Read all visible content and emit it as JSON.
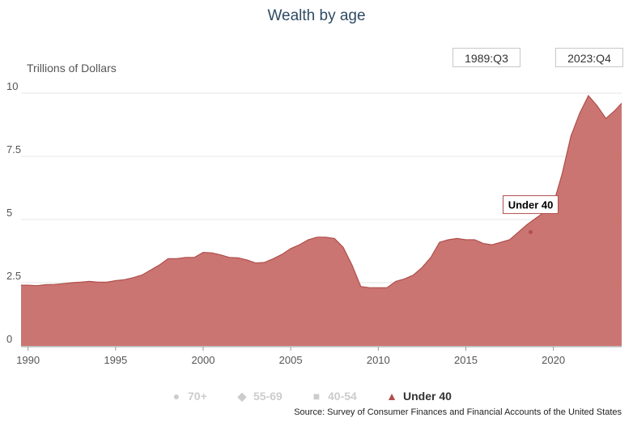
{
  "title": "Wealth by age",
  "range_start": "1989:Q3",
  "range_end": "2023:Q4",
  "source": "Source: Survey of Consumer Finances and Financial Accounts of the United States",
  "colors": {
    "series": "#c4625f",
    "series_line": "#b04f4c",
    "legend_inactive": "#cccccc",
    "legend_active": "#333333"
  },
  "legend": [
    {
      "label": "70+",
      "icon": "circle-icon",
      "active": false
    },
    {
      "label": "55-69",
      "icon": "diamond-icon",
      "active": false
    },
    {
      "label": "40-54",
      "icon": "square-icon",
      "active": false
    },
    {
      "label": "Under 40",
      "icon": "triangle-icon",
      "active": true
    }
  ],
  "chart_data": {
    "type": "area",
    "ylabel": "Trillions of Dollars",
    "xlabel": "",
    "xlim": [
      1989.6,
      2023.9
    ],
    "ylim": [
      0,
      10
    ],
    "x_ticks": [
      "1990",
      "1995",
      "2000",
      "2005",
      "2010",
      "2015",
      "2020"
    ],
    "y_ticks": [
      "0",
      "2.5",
      "5",
      "7.5",
      "10"
    ],
    "grid": true,
    "legend_placement": "bottom",
    "tooltip": {
      "label": "Under 40",
      "x": 2018.7,
      "y": 4.5
    },
    "series": [
      {
        "name": "Under 40",
        "x": [
          1989.6,
          1990.0,
          1990.5,
          1991.0,
          1991.5,
          1992.0,
          1992.5,
          1993.0,
          1993.5,
          1994.0,
          1994.5,
          1995.0,
          1995.5,
          1996.0,
          1996.5,
          1997.0,
          1997.5,
          1998.0,
          1998.5,
          1999.0,
          1999.5,
          2000.0,
          2000.5,
          2001.0,
          2001.5,
          2002.0,
          2002.5,
          2003.0,
          2003.5,
          2004.0,
          2004.5,
          2005.0,
          2005.5,
          2006.0,
          2006.5,
          2007.0,
          2007.5,
          2008.0,
          2008.5,
          2009.0,
          2009.5,
          2010.0,
          2010.5,
          2011.0,
          2011.5,
          2012.0,
          2012.5,
          2013.0,
          2013.5,
          2014.0,
          2014.5,
          2015.0,
          2015.5,
          2016.0,
          2016.5,
          2017.0,
          2017.5,
          2018.0,
          2018.5,
          2019.0,
          2019.5,
          2020.0,
          2020.5,
          2021.0,
          2021.5,
          2022.0,
          2022.5,
          2023.0,
          2023.5,
          2023.9
        ],
        "values": [
          2.4,
          2.4,
          2.38,
          2.42,
          2.43,
          2.46,
          2.5,
          2.52,
          2.55,
          2.52,
          2.52,
          2.58,
          2.62,
          2.7,
          2.8,
          3.0,
          3.2,
          3.45,
          3.45,
          3.5,
          3.5,
          3.7,
          3.68,
          3.6,
          3.5,
          3.48,
          3.4,
          3.28,
          3.3,
          3.45,
          3.62,
          3.85,
          4.0,
          4.2,
          4.3,
          4.3,
          4.25,
          3.9,
          3.2,
          2.35,
          2.3,
          2.3,
          2.3,
          2.55,
          2.65,
          2.8,
          3.1,
          3.5,
          4.1,
          4.2,
          4.25,
          4.2,
          4.2,
          4.05,
          4.0,
          4.1,
          4.2,
          4.5,
          4.8,
          5.05,
          5.3,
          5.6,
          6.8,
          8.3,
          9.2,
          9.9,
          9.5,
          9.0,
          9.3,
          9.6
        ]
      }
    ]
  }
}
